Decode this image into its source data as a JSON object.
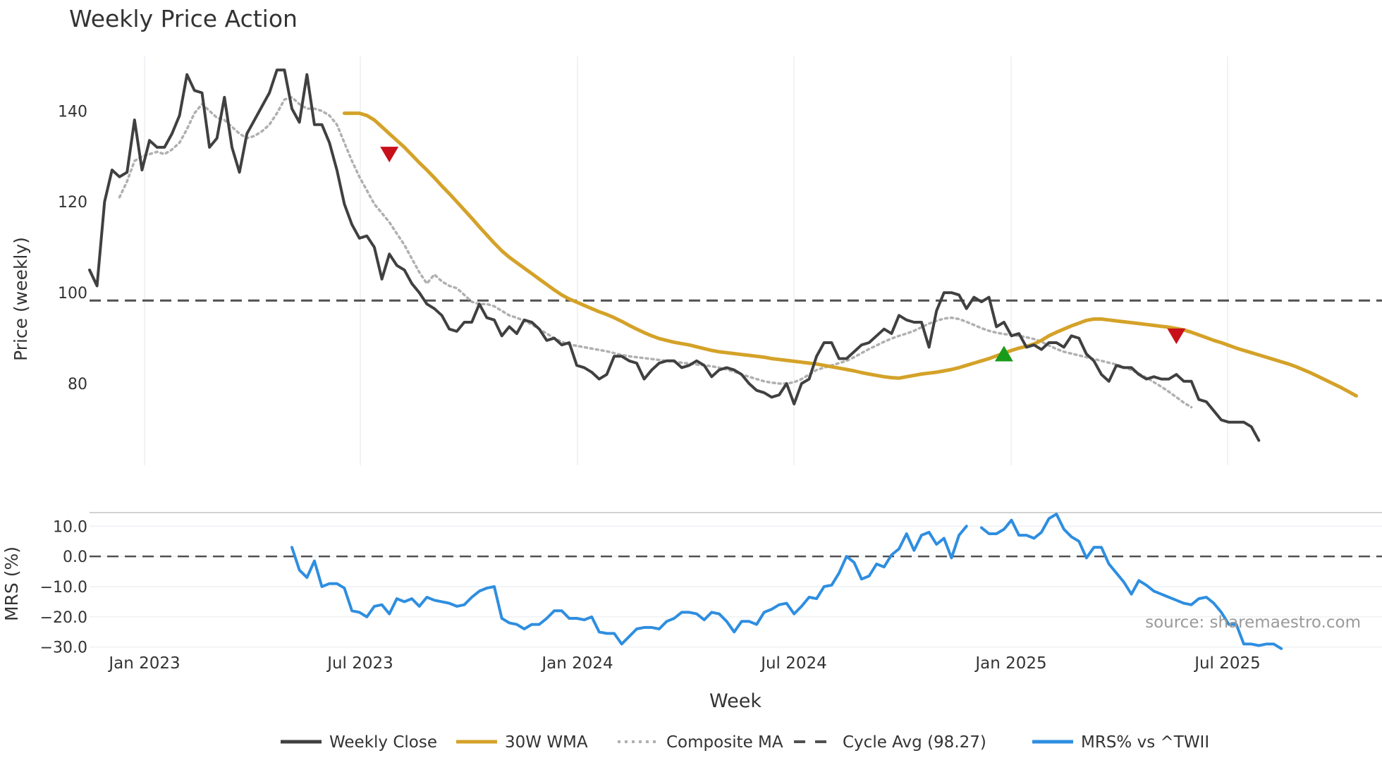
{
  "chart_data": [
    {
      "type": "line",
      "title": "Weekly Price Action",
      "xlabel": "",
      "ylabel": "Price (weekly)",
      "ylim": [
        62,
        152
      ],
      "yticks": [
        80,
        100,
        120,
        140
      ],
      "x_ticks": [
        "Jan 2023",
        "Jul 2023",
        "Jan 2024",
        "Jul 2024",
        "Jan 2025",
        "Jul 2025"
      ],
      "x_range_weeks": [
        0,
        179
      ],
      "series": [
        {
          "name": "Weekly Close",
          "color": "#404040",
          "style": "solid",
          "values": [
            105,
            101.5,
            120,
            127,
            125.5,
            126.5,
            138,
            127,
            133.5,
            132,
            132,
            135,
            139,
            148,
            144.5,
            144,
            132,
            134,
            143,
            132,
            126.5,
            135,
            138,
            141,
            144,
            149,
            149,
            140.5,
            137.5,
            148,
            137,
            137,
            133,
            127,
            119.5,
            115,
            112,
            112.5,
            110,
            103,
            108.5,
            106,
            105,
            102,
            100,
            97.5,
            96.5,
            95,
            92,
            91.5,
            93.5,
            93.5,
            97.5,
            94.5,
            94,
            90.5,
            92.5,
            91,
            94,
            93.5,
            92,
            89.5,
            90,
            88.5,
            89,
            84,
            83.5,
            82.5,
            81,
            82,
            86,
            86,
            85,
            84.5,
            81,
            83,
            84.5,
            85,
            85,
            83.5,
            84,
            85,
            84,
            81.5,
            83,
            83.5,
            83,
            82,
            80,
            78.5,
            78,
            77,
            77.5,
            80,
            75.5,
            80,
            81,
            86,
            89,
            89,
            85.5,
            85.5,
            87,
            88.5,
            89,
            90.5,
            92,
            91,
            95,
            94,
            93.5,
            93.5,
            88,
            96,
            100,
            100,
            99.5,
            96.5,
            99,
            98,
            99,
            92.5,
            93.5,
            90.5,
            91,
            88,
            88.5,
            87.5,
            89,
            89,
            88,
            90.5,
            90,
            86.5,
            85,
            82,
            80.5,
            84,
            83.5,
            83.5,
            82,
            81,
            81.5,
            81,
            81,
            82,
            80.5,
            80.5,
            76.5,
            76,
            74,
            72,
            71.5,
            71.5,
            71.5,
            70.5,
            67.5
          ]
        },
        {
          "name": "30W WMA",
          "color": "#d4a228",
          "style": "solid",
          "start_week": 34,
          "values": [
            139.5,
            139.5,
            139.5,
            139,
            138,
            136.5,
            135,
            133.5,
            132,
            130.3,
            128.6,
            127,
            125.3,
            123.5,
            121.8,
            120,
            118.2,
            116.4,
            114.5,
            112.7,
            110.9,
            109.2,
            107.8,
            106.6,
            105.4,
            104.2,
            103,
            101.8,
            100.6,
            99.5,
            98.6,
            97.9,
            97.2,
            96.5,
            95.8,
            95.2,
            94.5,
            93.7,
            92.8,
            92,
            91.2,
            90.5,
            89.9,
            89.5,
            89.1,
            88.8,
            88.5,
            88.1,
            87.7,
            87.3,
            87,
            86.8,
            86.6,
            86.4,
            86.2,
            86,
            85.8,
            85.5,
            85.3,
            85.1,
            84.9,
            84.7,
            84.5,
            84.3,
            84,
            83.7,
            83.4,
            83.1,
            82.8,
            82.4,
            82.1,
            81.8,
            81.5,
            81.3,
            81.2,
            81.5,
            81.8,
            82.1,
            82.3,
            82.5,
            82.8,
            83.1,
            83.5,
            84,
            84.5,
            85,
            85.5,
            86.1,
            86.7,
            87.3,
            87.8,
            88.2,
            88.7,
            89.5,
            90.5,
            91.3,
            92,
            92.7,
            93.3,
            93.9,
            94.2,
            94.2,
            94,
            93.8,
            93.6,
            93.4,
            93.2,
            93,
            92.8,
            92.6,
            92.4,
            92.1,
            91.8,
            91.3,
            90.7,
            90.1,
            89.5,
            89,
            88.4,
            87.8,
            87.3,
            86.8,
            86.3,
            85.8,
            85.3,
            84.8,
            84.3,
            83.7,
            83,
            82.3,
            81.5,
            80.7,
            79.9,
            79.1,
            78.2,
            77.3
          ]
        },
        {
          "name": "Composite MA",
          "color": "#b0b0b0",
          "style": "dotted",
          "start_week": 4,
          "values": [
            121,
            124.5,
            129,
            130,
            130.5,
            131,
            130.5,
            131.5,
            133,
            136,
            139.5,
            141.5,
            140,
            138.5,
            138,
            136.5,
            135,
            134,
            134.5,
            135.5,
            137,
            139.5,
            142.5,
            143,
            141.5,
            140.5,
            140.5,
            140,
            139,
            137,
            133,
            129,
            125.5,
            122.5,
            119.5,
            117.5,
            115.5,
            113,
            110.5,
            107.5,
            104.5,
            102,
            104,
            102.5,
            101.5,
            101,
            99.5,
            98,
            97.5,
            97.5,
            97,
            96,
            95,
            94.5,
            93.8,
            93,
            92,
            91,
            90,
            89.2,
            88.6,
            88.3,
            88,
            87.7,
            87.4,
            87.1,
            86.7,
            86.3,
            86,
            85.8,
            85.6,
            85.4,
            85.2,
            85,
            84.8,
            84.6,
            84.4,
            84.2,
            84,
            83.8,
            83.5,
            83.1,
            82.6,
            82,
            81.5,
            81,
            80.5,
            80.2,
            80,
            80,
            80.3,
            81,
            82,
            83,
            83.5,
            84,
            84.5,
            85,
            85.8,
            86.7,
            87.6,
            88.4,
            89.2,
            89.9,
            90.5,
            91,
            91.6,
            92.4,
            93.2,
            93.8,
            94.3,
            94.5,
            94.2,
            93.6,
            92.9,
            92.2,
            91.6,
            91.2,
            90.9,
            90.7,
            90.5,
            90.2,
            89.8,
            89.2,
            88.4,
            87.6,
            87,
            86.6,
            86.2,
            85.8,
            85.4,
            85,
            84.6,
            84.2,
            83.6,
            83,
            82.2,
            81.3,
            80.3,
            79.3,
            78.2,
            77,
            75.8,
            74.8
          ]
        },
        {
          "name": "Cycle Avg (98.27)",
          "color": "#505050",
          "style": "dashed",
          "value": 98.27
        }
      ],
      "markers": [
        {
          "type": "sell",
          "shape": "triangle-down",
          "color": "#c8101a",
          "week": 40,
          "value": 130.5
        },
        {
          "type": "buy",
          "shape": "triangle-up",
          "color": "#1a9a1a",
          "week": 122,
          "value": 86.5
        },
        {
          "type": "sell",
          "shape": "triangle-down",
          "color": "#c8101a",
          "week": 145,
          "value": 90.5
        }
      ]
    },
    {
      "type": "line",
      "title": "",
      "xlabel": "Week",
      "ylabel": "MRS (%)",
      "ylim": [
        -31,
        14.5
      ],
      "yticks": [
        -30.0,
        -20.0,
        -10.0,
        0.0,
        10.0
      ],
      "ytick_labels": [
        "−30.0",
        "−20.0",
        "−10.0",
        "0.0",
        "10.0"
      ],
      "x_ticks": [
        "Jan 2023",
        "Jul 2023",
        "Jan 2024",
        "Jul 2024",
        "Jan 2025",
        "Jul 2025"
      ],
      "series": [
        {
          "name": "MRS% vs ^TWII",
          "color": "#2e8ee0",
          "style": "solid",
          "start_week": 27,
          "gap_after": 127,
          "values": [
            3,
            -4.5,
            -7,
            -1.5,
            -10,
            -9,
            -9,
            -10.5,
            -18,
            -18.5,
            -20,
            -16.5,
            -16,
            -19,
            -14,
            -15,
            -14,
            -16.5,
            -13.5,
            -14.5,
            -15,
            -15.5,
            -16.5,
            -16,
            -13.5,
            -11.5,
            -10.5,
            -10,
            -20.5,
            -22,
            -22.5,
            -24,
            -22.5,
            -22.5,
            -20.5,
            -18,
            -18,
            -20.5,
            -20.5,
            -21,
            -20,
            -25,
            -25.5,
            -25.5,
            -29,
            -26.5,
            -24,
            -23.5,
            -23.5,
            -24,
            -21.5,
            -20.5,
            -18.5,
            -18.5,
            -19,
            -21,
            -18.5,
            -19,
            -21.5,
            -25,
            -21.5,
            -21.5,
            -22.5,
            -18.5,
            -17.5,
            -16,
            -15.5,
            -19,
            -16.5,
            -13.5,
            -14,
            -10,
            -9.5,
            -5.5,
            0,
            -2,
            -7.5,
            -6.5,
            -2.5,
            -3.5,
            0.5,
            2.5,
            7.5,
            2,
            7,
            8,
            4,
            6,
            -0.5,
            7,
            10,
            null,
            9.5,
            7.5,
            7.5,
            9,
            12,
            7,
            7,
            6,
            8,
            12.5,
            14,
            9,
            6.5,
            5,
            -0.5,
            3,
            3,
            -2.5,
            -5.5,
            -8.5,
            -12.5,
            -8,
            -9.5,
            -11.5,
            -12.5,
            -13.5,
            -14.5,
            -15.5,
            -16,
            -14,
            -13.5,
            -15.5,
            -18.5,
            -22.5,
            -22.5,
            -29,
            -29,
            -29.5,
            -29,
            -29,
            -30.5
          ]
        },
        {
          "name": "MRS zero line",
          "color": "#505050",
          "style": "dashed",
          "value": 0
        }
      ]
    }
  ],
  "source_text": "source: sharemaestro.com",
  "legend": [
    {
      "label": "Weekly Close",
      "color": "#404040",
      "style": "solid"
    },
    {
      "label": "30W WMA",
      "color": "#d4a228",
      "style": "solid"
    },
    {
      "label": "Composite MA",
      "color": "#b0b0b0",
      "style": "dotted"
    },
    {
      "label": "Cycle Avg (98.27)",
      "color": "#505050",
      "style": "dashed"
    },
    {
      "label": "MRS% vs ^TWII",
      "color": "#2e8ee0",
      "style": "solid"
    }
  ]
}
